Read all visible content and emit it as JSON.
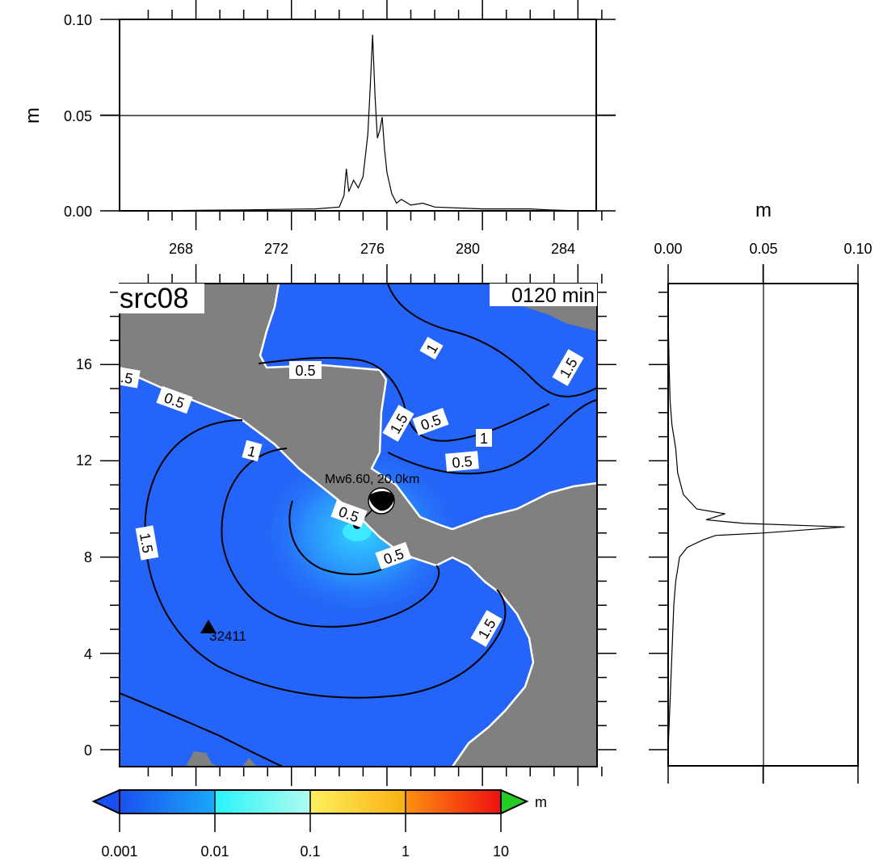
{
  "top_profile": {
    "y_unit": "m",
    "y_ticks": [
      "0.00",
      "0.05",
      "0.10"
    ],
    "x_ticks": [
      "268",
      "272",
      "276",
      "280",
      "284"
    ],
    "curve": [
      [
        266,
        0.0
      ],
      [
        270,
        0.0005
      ],
      [
        273,
        0.001
      ],
      [
        274,
        0.002
      ],
      [
        274.2,
        0.008
      ],
      [
        274.3,
        0.022
      ],
      [
        274.4,
        0.01
      ],
      [
        274.6,
        0.016
      ],
      [
        274.8,
        0.012
      ],
      [
        275,
        0.018
      ],
      [
        275.2,
        0.04
      ],
      [
        275.3,
        0.065
      ],
      [
        275.4,
        0.092
      ],
      [
        275.5,
        0.06
      ],
      [
        275.6,
        0.038
      ],
      [
        275.7,
        0.042
      ],
      [
        275.8,
        0.049
      ],
      [
        275.9,
        0.032
      ],
      [
        276,
        0.02
      ],
      [
        276.2,
        0.009
      ],
      [
        276.4,
        0.004
      ],
      [
        276.6,
        0.006
      ],
      [
        277,
        0.003
      ],
      [
        277.5,
        0.004
      ],
      [
        278,
        0.002
      ],
      [
        280,
        0.001
      ],
      [
        282,
        0.001
      ],
      [
        282.8,
        0.0005
      ],
      [
        284,
        0.0
      ]
    ]
  },
  "right_profile": {
    "x_unit": "m",
    "x_ticks": [
      "0.00",
      "0.05",
      "0.10"
    ],
    "curve": [
      [
        0,
        0.0
      ],
      [
        0.001,
        2
      ],
      [
        0.002,
        4
      ],
      [
        0.003,
        6
      ],
      [
        0.004,
        7
      ],
      [
        0.006,
        8
      ],
      [
        0.01,
        8.4
      ],
      [
        0.018,
        8.7
      ],
      [
        0.025,
        8.9
      ],
      [
        0.05,
        9.0
      ],
      [
        0.093,
        9.25
      ],
      [
        0.04,
        9.4
      ],
      [
        0.02,
        9.55
      ],
      [
        0.03,
        9.8
      ],
      [
        0.015,
        10.0
      ],
      [
        0.008,
        10.6
      ],
      [
        0.005,
        11.5
      ],
      [
        0.004,
        12.5
      ],
      [
        0.002,
        13.5
      ],
      [
        0.001,
        14.5
      ],
      [
        0.0005,
        16
      ],
      [
        0,
        18
      ]
    ]
  },
  "map": {
    "title": "src08",
    "time_label": "0120 min",
    "lat_ticks": [
      "0",
      "4",
      "8",
      "12",
      "16"
    ],
    "epicenter_label": "Mw6.60, 20.0km",
    "station": "32411",
    "contour_labels": [
      {
        "text": "1",
        "rot": -60
      },
      {
        "text": "1.5",
        "rot": -60
      },
      {
        "text": "0.5",
        "rot": 0
      },
      {
        "text": ".5",
        "rot": 10
      },
      {
        "text": "0.5",
        "rot": 20
      },
      {
        "text": "1",
        "rot": 15
      },
      {
        "text": "1.5",
        "rot": 80
      },
      {
        "text": "1.5",
        "rot": -60
      },
      {
        "text": "0.5",
        "rot": -20
      },
      {
        "text": "1",
        "rot": 0
      },
      {
        "text": "0.5",
        "rot": -5
      },
      {
        "text": "1.5",
        "rot": -60
      },
      {
        "text": "0.5",
        "rot": 20
      },
      {
        "text": "0.5",
        "rot": -20
      }
    ],
    "colors": {
      "ocean": "#2464f8",
      "land": "#808080",
      "near_field": "#22d8ff"
    }
  },
  "colorbar": {
    "unit": "m",
    "ticks": [
      "0.001",
      "0.01",
      "0.1",
      "1",
      "10"
    ],
    "colors": [
      "#2464f8",
      "#28f4f8",
      "#f8d020",
      "#ff8010",
      "#ee1010",
      "#22cc22"
    ]
  }
}
